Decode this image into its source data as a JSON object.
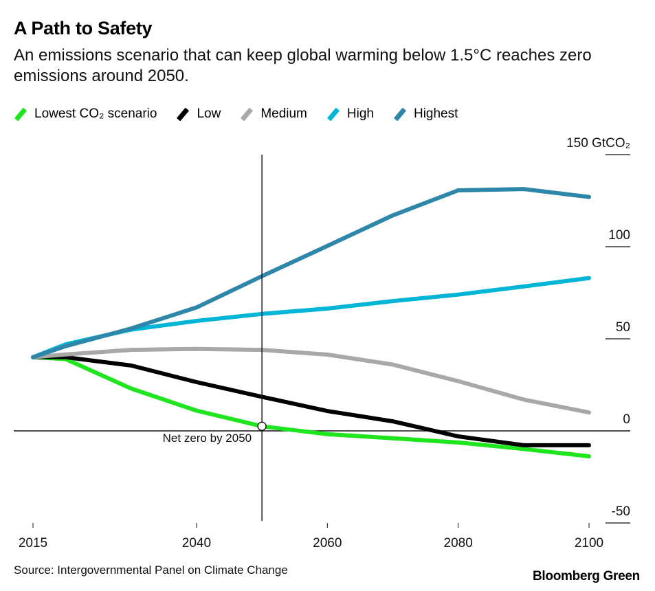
{
  "header": {
    "title": "A Path to Safety",
    "subtitle": "An emissions scenario that can keep global warming below 1.5°C reaches zero emissions around 2050."
  },
  "legend": [
    {
      "label": "Lowest CO₂ scenario",
      "color": "#1fe51f"
    },
    {
      "label": "Low",
      "color": "#000000"
    },
    {
      "label": "Medium",
      "color": "#a8a8a8"
    },
    {
      "label": "High",
      "color": "#00b5d6"
    },
    {
      "label": "Highest",
      "color": "#2e86a8"
    }
  ],
  "footer": {
    "source": "Source: Intergovernmental Panel on Climate Change",
    "brand": "Bloomberg Green"
  },
  "chart_data": {
    "type": "line",
    "title": "A Path to Safety",
    "subtitle": "An emissions scenario that can keep global warming below 1.5°C reaches zero emissions around 2050.",
    "xlabel": "",
    "ylabel": "GtCO₂",
    "x": [
      2015,
      2020,
      2030,
      2040,
      2050,
      2060,
      2070,
      2080,
      2090,
      2100
    ],
    "xlim": [
      2015,
      2100
    ],
    "ylim": [
      -50,
      150
    ],
    "x_ticks": [
      {
        "value": 2015,
        "label": "2015"
      },
      {
        "value": 2040,
        "label": "2040"
      },
      {
        "value": 2060,
        "label": "2060"
      },
      {
        "value": 2080,
        "label": "2080"
      },
      {
        "value": 2100,
        "label": "2100"
      }
    ],
    "y_ticks": [
      {
        "value": 150,
        "label": "150 GtCO₂"
      },
      {
        "value": 100,
        "label": "100"
      },
      {
        "value": 50,
        "label": "50"
      },
      {
        "value": 0,
        "label": "0"
      },
      {
        "value": -50,
        "label": "-50"
      }
    ],
    "y_axis_side": "right",
    "grid": false,
    "legend_position": "top-left",
    "series": [
      {
        "name": "Lowest CO₂ scenario",
        "color": "#1fe51f",
        "values": [
          40,
          39,
          23,
          11,
          2.5,
          -1.8,
          -4,
          -6.3,
          -9.8,
          -13.8
        ]
      },
      {
        "name": "Low",
        "color": "#000000",
        "values": [
          40,
          40,
          35.5,
          26.5,
          18.5,
          10.8,
          5.2,
          -3,
          -7.8,
          -7.8
        ]
      },
      {
        "name": "Medium",
        "color": "#a8a8a8",
        "values": [
          40,
          41.5,
          44,
          44.5,
          44,
          41.4,
          36,
          27,
          17,
          10
        ]
      },
      {
        "name": "High",
        "color": "#00b5d6",
        "values": [
          40,
          47,
          55,
          59.7,
          63.5,
          66.4,
          70.5,
          74,
          78.4,
          83
        ]
      },
      {
        "name": "Highest",
        "color": "#2e86a8",
        "values": [
          40,
          46,
          55.6,
          67,
          84,
          100.4,
          117,
          130.6,
          131.3,
          127
        ]
      }
    ],
    "annotations": [
      {
        "x": 2050,
        "y": 0,
        "text": "Net zero by 2050",
        "type": "vertical-line-with-marker"
      }
    ]
  }
}
